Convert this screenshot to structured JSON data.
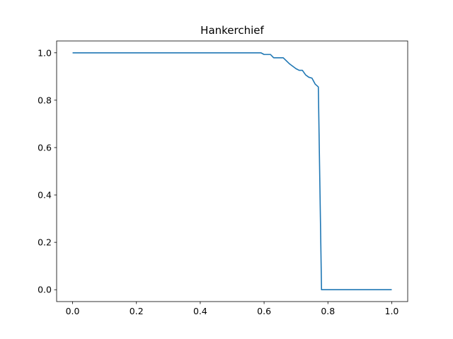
{
  "chart_data": {
    "type": "line",
    "title": "Hankerchief",
    "xlabel": "",
    "ylabel": "",
    "xlim": [
      -0.05,
      1.05
    ],
    "ylim": [
      -0.05,
      1.05
    ],
    "x_ticks": [
      0.0,
      0.2,
      0.4,
      0.6,
      0.8,
      1.0
    ],
    "x_tick_labels": [
      "0.0",
      "0.2",
      "0.4",
      "0.6",
      "0.8",
      "1.0"
    ],
    "y_ticks": [
      0.0,
      0.2,
      0.4,
      0.6,
      0.8,
      1.0
    ],
    "y_tick_labels": [
      "0.0",
      "0.2",
      "0.4",
      "0.6",
      "0.8",
      "1.0"
    ],
    "grid": false,
    "series": [
      {
        "color": "#1f77b4",
        "x": [
          0.0,
          0.59,
          0.6,
          0.62,
          0.63,
          0.66,
          0.68,
          0.7,
          0.71,
          0.72,
          0.73,
          0.74,
          0.75,
          0.76,
          0.77,
          0.78,
          0.79,
          0.8,
          1.0
        ],
        "y": [
          1.0,
          1.0,
          0.993,
          0.993,
          0.979,
          0.979,
          0.953,
          0.933,
          0.926,
          0.926,
          0.907,
          0.897,
          0.893,
          0.868,
          0.856,
          0.0,
          0.0,
          0.0,
          0.0
        ]
      }
    ]
  }
}
